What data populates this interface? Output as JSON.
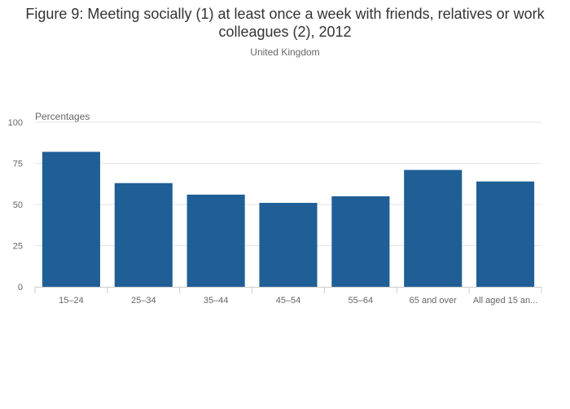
{
  "header": {
    "title": "Figure 9: Meeting socially (1) at least once a week with friends, relatives or work colleagues (2), 2012",
    "subtitle": "United Kingdom"
  },
  "chart_data": {
    "type": "bar",
    "title": "Figure 9: Meeting socially (1) at least once a week with friends, relatives or work colleagues (2), 2012",
    "subtitle": "United Kingdom",
    "ylabel": "Percentages",
    "xlabel": "",
    "categories": [
      "15–24",
      "25–34",
      "35–44",
      "45–54",
      "55–64",
      "65 and over",
      "All aged 15 an..."
    ],
    "values": [
      82,
      63,
      56,
      51,
      55,
      71,
      64
    ],
    "ylim": [
      0,
      100
    ],
    "yticks": [
      0,
      25,
      50,
      75,
      100
    ],
    "grid": true,
    "bar_color": "#1f5f96"
  }
}
